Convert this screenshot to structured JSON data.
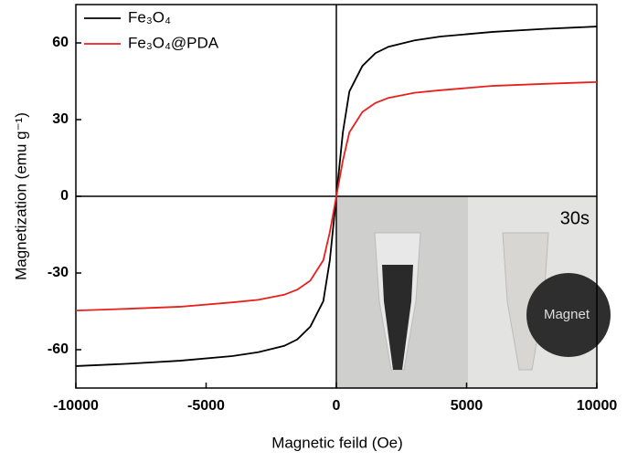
{
  "chart_data": {
    "type": "line",
    "xlabel": "Magnetic feild (Oe)",
    "ylabel": "Magnetization (emu g⁻¹)",
    "x": [
      -10000,
      -8000,
      -6000,
      -4000,
      -3000,
      -2000,
      -1500,
      -1000,
      -500,
      -250,
      0,
      250,
      500,
      1000,
      1500,
      2000,
      3000,
      4000,
      6000,
      8000,
      10000
    ],
    "series": [
      {
        "name": "Fe₃O₄",
        "color": "#000000",
        "values": [
          -66.4,
          -65.5,
          -64.3,
          -62.5,
          -61,
          -58.5,
          -56,
          -51,
          -41,
          -25,
          0,
          25,
          41,
          51,
          56,
          58.5,
          61,
          62.5,
          64.3,
          65.5,
          66.4
        ]
      },
      {
        "name": "Fe₃O₄@PDA",
        "color": "#e8201c",
        "values": [
          -44.7,
          -44,
          -43.2,
          -41.5,
          -40.5,
          -38.5,
          -36.5,
          -33,
          -25,
          -14,
          0,
          14,
          25,
          33,
          36.5,
          38.5,
          40.5,
          41.5,
          43.2,
          44,
          44.7
        ]
      }
    ],
    "xlim": [
      -10000,
      10000
    ],
    "xticks": [
      -10000,
      -5000,
      0,
      5000,
      10000
    ],
    "ylim": [
      -75,
      75
    ],
    "yticks": [
      -60,
      -30,
      0,
      30,
      60
    ],
    "legend": "upper-left",
    "annotations": [
      "30s",
      "Magnet"
    ]
  }
}
